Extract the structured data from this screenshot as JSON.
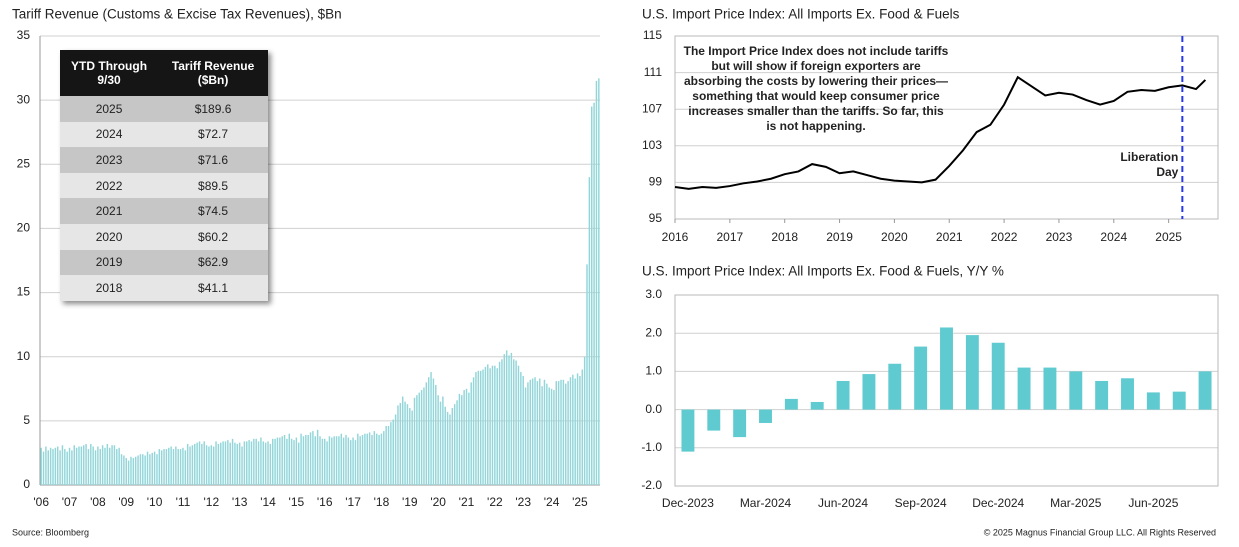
{
  "source": "Source: Bloomberg",
  "copyright": "© 2025 Magnus Financial Group LLC. All Rights Reserved",
  "table": {
    "header": [
      "YTD Through 9/30",
      "Tariff Revenue ($Bn)"
    ],
    "rows": [
      [
        "2025",
        "$189.6"
      ],
      [
        "2024",
        "$72.7"
      ],
      [
        "2023",
        "$71.6"
      ],
      [
        "2022",
        "$89.5"
      ],
      [
        "2021",
        "$74.5"
      ],
      [
        "2020",
        "$60.2"
      ],
      [
        "2019",
        "$62.9"
      ],
      [
        "2018",
        "$41.1"
      ]
    ]
  },
  "chart_data": [
    {
      "type": "bar",
      "title": "Tariff Revenue (Customs & Excise Tax Revenues), $Bn",
      "color": "#93d6da",
      "grid": true,
      "categories": [
        "'06",
        null,
        null,
        null,
        null,
        null,
        null,
        null,
        null,
        null,
        null,
        null,
        "'07",
        null,
        null,
        null,
        null,
        null,
        null,
        null,
        null,
        null,
        null,
        null,
        "'08",
        null,
        null,
        null,
        null,
        null,
        null,
        null,
        null,
        null,
        null,
        null,
        "'09",
        null,
        null,
        null,
        null,
        null,
        null,
        null,
        null,
        null,
        null,
        null,
        "'10",
        null,
        null,
        null,
        null,
        null,
        null,
        null,
        null,
        null,
        null,
        null,
        "'11",
        null,
        null,
        null,
        null,
        null,
        null,
        null,
        null,
        null,
        null,
        null,
        "'12",
        null,
        null,
        null,
        null,
        null,
        null,
        null,
        null,
        null,
        null,
        null,
        "'13",
        null,
        null,
        null,
        null,
        null,
        null,
        null,
        null,
        null,
        null,
        null,
        "'14",
        null,
        null,
        null,
        null,
        null,
        null,
        null,
        null,
        null,
        null,
        null,
        "'15",
        null,
        null,
        null,
        null,
        null,
        null,
        null,
        null,
        null,
        null,
        null,
        "'16",
        null,
        null,
        null,
        null,
        null,
        null,
        null,
        null,
        null,
        null,
        null,
        "'17",
        null,
        null,
        null,
        null,
        null,
        null,
        null,
        null,
        null,
        null,
        null,
        "'18",
        null,
        null,
        null,
        null,
        null,
        null,
        null,
        null,
        null,
        null,
        null,
        "'19",
        null,
        null,
        null,
        null,
        null,
        null,
        null,
        null,
        null,
        null,
        null,
        "'20",
        null,
        null,
        null,
        null,
        null,
        null,
        null,
        null,
        null,
        null,
        null,
        "'21",
        null,
        null,
        null,
        null,
        null,
        null,
        null,
        null,
        null,
        null,
        null,
        "'22",
        null,
        null,
        null,
        null,
        null,
        null,
        null,
        null,
        null,
        null,
        null,
        "'23",
        null,
        null,
        null,
        null,
        null,
        null,
        null,
        null,
        null,
        null,
        null,
        "'24",
        null,
        null,
        null,
        null,
        null,
        null,
        null,
        null,
        null,
        null,
        null,
        "'25",
        null,
        null,
        null,
        null,
        null,
        null,
        null,
        null
      ],
      "values": [
        2.9,
        2.6,
        3.0,
        2.7,
        2.9,
        2.8,
        2.9,
        3.0,
        2.7,
        3.1,
        2.8,
        2.6,
        2.9,
        2.7,
        3.1,
        2.9,
        3.0,
        3.0,
        3.1,
        3.2,
        2.8,
        3.2,
        3.0,
        2.7,
        3.0,
        2.8,
        3.1,
        2.9,
        3.2,
        2.9,
        3.1,
        3.1,
        2.8,
        2.9,
        2.4,
        2.3,
        2.1,
        1.9,
        2.2,
        2.1,
        2.2,
        2.3,
        2.4,
        2.4,
        2.3,
        2.6,
        2.4,
        2.5,
        2.6,
        2.4,
        2.8,
        2.7,
        2.8,
        2.8,
        2.9,
        3.0,
        2.8,
        3.0,
        2.8,
        2.8,
        2.9,
        2.7,
        3.2,
        3.0,
        3.1,
        3.2,
        3.3,
        3.4,
        3.2,
        3.4,
        3.1,
        3.0,
        3.1,
        3.0,
        3.4,
        3.2,
        3.3,
        3.4,
        3.4,
        3.5,
        3.3,
        3.6,
        3.3,
        3.2,
        3.3,
        3.0,
        3.4,
        3.4,
        3.5,
        3.4,
        3.6,
        3.6,
        3.4,
        3.7,
        3.4,
        3.3,
        3.4,
        3.2,
        3.6,
        3.6,
        3.7,
        3.7,
        3.8,
        3.9,
        3.6,
        4.0,
        3.6,
        3.5,
        3.7,
        3.3,
        4.0,
        3.8,
        3.9,
        3.9,
        4.1,
        4.2,
        3.8,
        4.3,
        3.8,
        3.6,
        3.6,
        3.4,
        3.8,
        3.7,
        3.8,
        3.8,
        3.8,
        4.0,
        3.7,
        3.9,
        3.7,
        3.5,
        3.7,
        3.5,
        4.0,
        3.8,
        3.9,
        4.0,
        4.0,
        4.1,
        3.9,
        4.2,
        4.0,
        3.9,
        4.0,
        4.2,
        4.6,
        4.6,
        4.9,
        5.1,
        5.5,
        6.2,
        6.4,
        6.9,
        6.5,
        6.3,
        6.0,
        5.8,
        6.8,
        7.0,
        7.2,
        7.4,
        7.6,
        8.0,
        8.4,
        8.8,
        8.3,
        7.8,
        7.0,
        6.5,
        6.9,
        6.1,
        5.7,
        5.5,
        6.0,
        6.3,
        6.6,
        7.1,
        7.0,
        7.4,
        7.5,
        7.2,
        8.0,
        8.4,
        8.8,
        8.9,
        8.9,
        9.0,
        9.2,
        9.4,
        9.1,
        9.3,
        9.3,
        9.1,
        9.6,
        9.8,
        10.2,
        10.5,
        10.1,
        10.3,
        9.8,
        9.7,
        9.3,
        8.8,
        8.5,
        7.6,
        8.0,
        8.2,
        8.3,
        8.4,
        8.1,
        8.3,
        7.7,
        8.2,
        7.9,
        7.6,
        7.5,
        7.4,
        8.1,
        8.1,
        8.2,
        8.2,
        7.9,
        8.1,
        8.4,
        8.6,
        8.3,
        8.7,
        8.5,
        9.0,
        10.0,
        17.2,
        24.0,
        29.5,
        29.8,
        31.5,
        31.7
      ],
      "ylim": [
        0,
        35
      ],
      "yticks": [
        0,
        5,
        10,
        15,
        20,
        25,
        30,
        35
      ]
    },
    {
      "type": "line",
      "title": "U.S. Import Price Index: All Imports Ex. Food & Fuels",
      "color": "#000000",
      "grid": true,
      "x": [
        2016,
        2016.25,
        2016.5,
        2016.75,
        2017,
        2017.25,
        2017.5,
        2017.75,
        2018,
        2018.25,
        2018.5,
        2018.75,
        2019,
        2019.25,
        2019.5,
        2019.75,
        2020,
        2020.25,
        2020.5,
        2020.75,
        2021,
        2021.25,
        2021.5,
        2021.75,
        2022,
        2022.25,
        2022.5,
        2022.75,
        2023,
        2023.25,
        2023.5,
        2023.75,
        2024,
        2024.25,
        2024.5,
        2024.75,
        2025,
        2025.25,
        2025.5,
        2025.67
      ],
      "values": [
        98.5,
        98.3,
        98.5,
        98.4,
        98.6,
        98.9,
        99.1,
        99.4,
        99.9,
        100.2,
        101.0,
        100.7,
        100.0,
        100.2,
        99.8,
        99.4,
        99.2,
        99.1,
        99.0,
        99.3,
        100.8,
        102.5,
        104.5,
        105.3,
        107.5,
        110.5,
        109.5,
        108.5,
        108.8,
        108.6,
        108.0,
        107.5,
        107.9,
        108.9,
        109.1,
        109.0,
        109.4,
        109.6,
        109.2,
        110.2
      ],
      "xlim": [
        2016,
        2025.9
      ],
      "xticks": [
        2016,
        2017,
        2018,
        2019,
        2020,
        2021,
        2022,
        2023,
        2024,
        2025
      ],
      "ylim": [
        95,
        115
      ],
      "yticks": [
        95,
        99,
        103,
        107,
        111,
        115
      ],
      "annotation": [
        "The Import Price Index does not include tariffs",
        "but will show if foreign exporters are",
        "absorbing the costs by lowering their prices—",
        "something that would keep consumer price",
        "increases smaller than the tariffs. So far, this",
        "is not happening."
      ],
      "event": {
        "x": 2025.25,
        "color": "#2838e8",
        "label": [
          "Liberation",
          "Day"
        ]
      }
    },
    {
      "type": "bar",
      "title": "U.S. Import Price Index: All Imports Ex. Food & Fuels, Y/Y %",
      "color": "#5fcbd1",
      "grid": true,
      "categories": [
        "Dec-2023",
        null,
        null,
        "Mar-2024",
        null,
        null,
        "Jun-2024",
        null,
        null,
        "Sep-2024",
        null,
        null,
        "Dec-2024",
        null,
        null,
        "Mar-2025",
        null,
        null,
        "Jun-2025",
        null,
        null
      ],
      "values": [
        -1.1,
        -0.55,
        -0.72,
        -0.35,
        0.28,
        0.2,
        0.75,
        0.93,
        1.2,
        1.65,
        2.15,
        1.95,
        1.75,
        1.1,
        1.1,
        1.0,
        0.75,
        0.82,
        0.45,
        0.47,
        1.0
      ],
      "ylim": [
        -2,
        3
      ],
      "yticks": [
        {
          "value": -2,
          "label": "-2.0"
        },
        {
          "value": -1,
          "label": "-1.0"
        },
        {
          "value": 0,
          "label": "0.0"
        },
        {
          "value": 1,
          "label": "1.0"
        },
        {
          "value": 2,
          "label": "2.0"
        },
        {
          "value": 3,
          "label": "3.0"
        }
      ]
    }
  ]
}
